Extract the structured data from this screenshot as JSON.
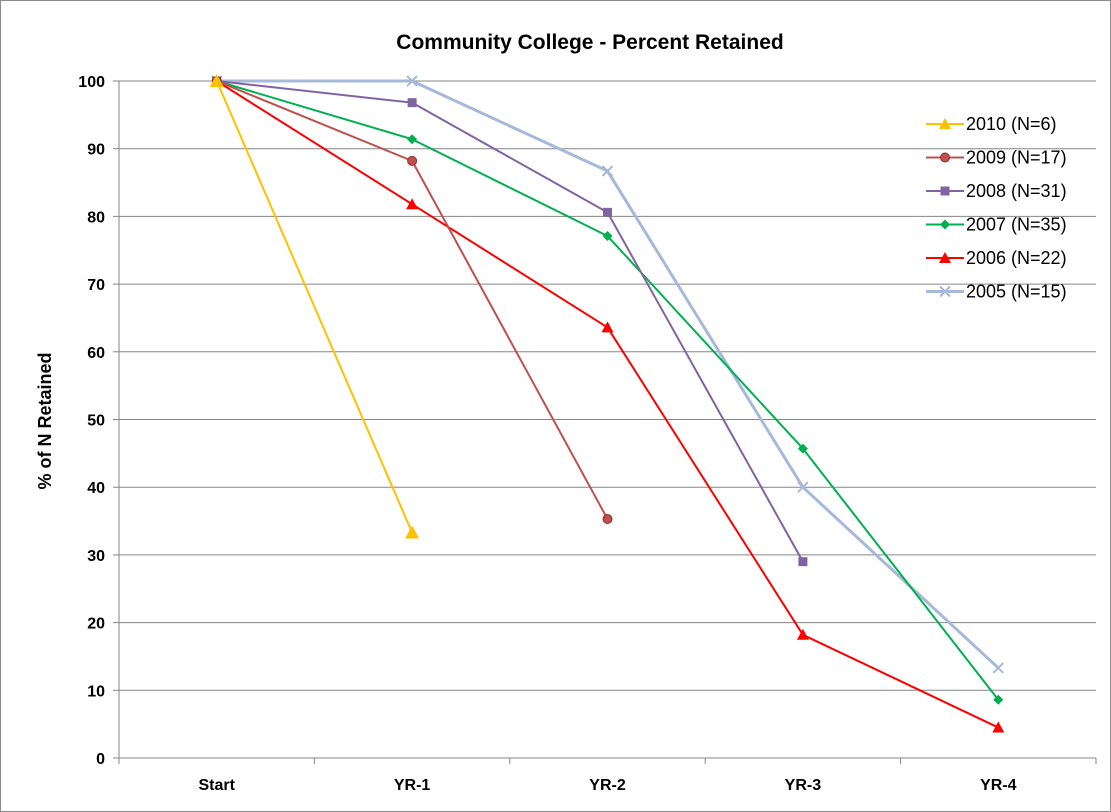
{
  "chart_data": {
    "type": "line",
    "title": "Community College - Percent Retained",
    "xlabel": "",
    "ylabel": "% of N Retained",
    "categories": [
      "Start",
      "YR-1",
      "YR-2",
      "YR-3",
      "YR-4"
    ],
    "ylim": [
      0,
      100
    ],
    "yticks": [
      0,
      10,
      20,
      30,
      40,
      50,
      60,
      70,
      80,
      90,
      100
    ],
    "grid": "horizontal",
    "legend_position": "right",
    "series": [
      {
        "name": "2010 (N=6)",
        "color": "#FFC000",
        "marker": "triangle",
        "values": [
          100,
          33.3,
          null,
          null,
          null
        ]
      },
      {
        "name": "2009 (N=17)",
        "color": "#C0504D",
        "marker": "circle",
        "values": [
          100,
          88.2,
          35.3,
          null,
          null
        ]
      },
      {
        "name": "2008 (N=31)",
        "color": "#8064A2",
        "marker": "square",
        "values": [
          100,
          96.8,
          80.6,
          29.0,
          null
        ]
      },
      {
        "name": "2007 (N=35)",
        "color": "#00B050",
        "marker": "diamond",
        "values": [
          100,
          91.4,
          77.1,
          45.7,
          8.6
        ]
      },
      {
        "name": "2006 (N=22)",
        "color": "#FF0000",
        "marker": "triangle",
        "values": [
          100,
          81.8,
          63.6,
          18.2,
          4.5
        ]
      },
      {
        "name": "2005 (N=15)",
        "color": "#A7B9D9",
        "marker": "x",
        "values": [
          100,
          100,
          86.7,
          40.0,
          13.3
        ]
      }
    ]
  }
}
